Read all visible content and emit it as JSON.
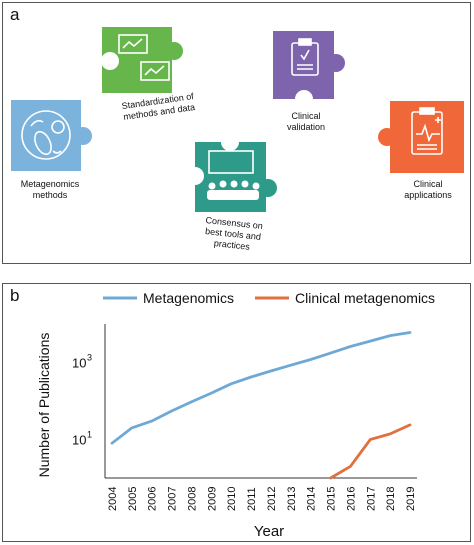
{
  "panel_a": {
    "label": "a",
    "steps": [
      {
        "label": "Metagenomics\nmethods",
        "icon": "microbe-icon",
        "color": "#7cb3dd"
      },
      {
        "label": "Standardization of\nmethods and data",
        "icon": "monitor-charts-icon",
        "color": "#67b64c"
      },
      {
        "label": "Consensus on\nbest tools and\npractices",
        "icon": "audience-presentation-icon",
        "color": "#2e9b8a"
      },
      {
        "label": "Clinical\nvalidation",
        "icon": "clipboard-check-icon",
        "color": "#7e63ad"
      },
      {
        "label": "Clinical\napplications",
        "icon": "clipboard-ecg-icon",
        "color": "#f0683a"
      }
    ]
  },
  "panel_b": {
    "label": "b"
  },
  "chart_data": {
    "type": "line",
    "xlabel": "Year",
    "ylabel": "Number of Publications",
    "x": [
      2004,
      2005,
      2006,
      2007,
      2008,
      2009,
      2010,
      2011,
      2012,
      2013,
      2014,
      2015,
      2016,
      2017,
      2018,
      2019
    ],
    "yscale": "log",
    "yticks": [
      {
        "base": "10",
        "exp": "1",
        "value": 10
      },
      {
        "base": "10",
        "exp": "3",
        "value": 1000
      }
    ],
    "ylim": [
      1,
      10000
    ],
    "legend_position": "top",
    "series": [
      {
        "name": "Metagenomics",
        "color": "#6ea9d6",
        "x": [
          2004,
          2005,
          2006,
          2007,
          2008,
          2009,
          2010,
          2011,
          2012,
          2013,
          2014,
          2015,
          2016,
          2017,
          2018,
          2019
        ],
        "values": [
          8,
          20,
          30,
          55,
          95,
          160,
          280,
          420,
          600,
          850,
          1200,
          1750,
          2600,
          3600,
          5000,
          6000
        ]
      },
      {
        "name": "Clinical metagenomics",
        "color": "#e0703f",
        "x": [
          2015,
          2016,
          2017,
          2018,
          2019
        ],
        "values": [
          1,
          2,
          10,
          14,
          24
        ]
      }
    ]
  }
}
